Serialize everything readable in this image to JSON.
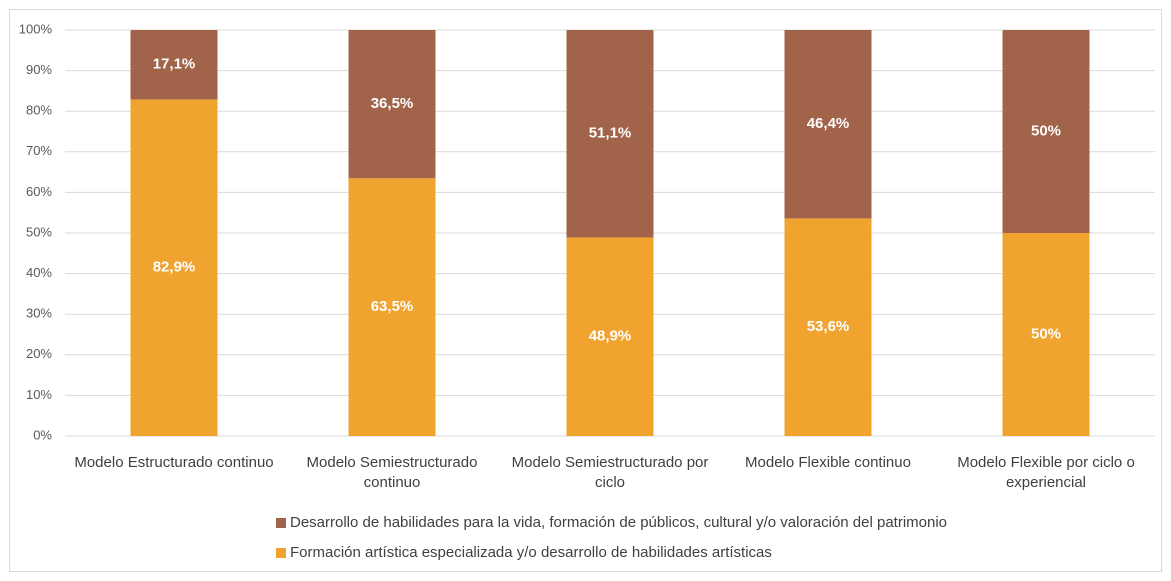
{
  "chart_data": {
    "type": "stacked_bar",
    "categories": [
      "Modelo Estructurado continuo",
      "Modelo Semiestructurado continuo",
      "Modelo Semiestructurado por ciclo",
      "Modelo Flexible continuo",
      "Modelo Flexible por ciclo o experiencial"
    ],
    "series": [
      {
        "name": "Formación artística especializada y/o desarrollo de habilidades artísticas",
        "color": "#f0a32f",
        "values": [
          82.9,
          63.5,
          48.9,
          53.6,
          50
        ],
        "value_labels": [
          "82,9%",
          "63,5%",
          "48,9%",
          "53,6%",
          "50%"
        ]
      },
      {
        "name": "Desarrollo de habilidades para la vida, formación de públicos, cultural y/o valoración del patrimonio",
        "color": "#a2634b",
        "values": [
          17.1,
          36.5,
          51.1,
          46.4,
          50
        ],
        "value_labels": [
          "17,1%",
          "36,5%",
          "51,1%",
          "46,4%",
          "50%"
        ]
      }
    ],
    "ylim": [
      0,
      100
    ],
    "yticks": [
      {
        "value": 0,
        "label": "0%"
      },
      {
        "value": 10,
        "label": "10%"
      },
      {
        "value": 20,
        "label": "20%"
      },
      {
        "value": 30,
        "label": "30%"
      },
      {
        "value": 40,
        "label": "40%"
      },
      {
        "value": 50,
        "label": "50%"
      },
      {
        "value": 60,
        "label": "60%"
      },
      {
        "value": 70,
        "label": "70%"
      },
      {
        "value": 80,
        "label": "80%"
      },
      {
        "value": 90,
        "label": "90%"
      },
      {
        "value": 100,
        "label": "100%"
      }
    ],
    "grid": true,
    "legend": "bottom"
  }
}
